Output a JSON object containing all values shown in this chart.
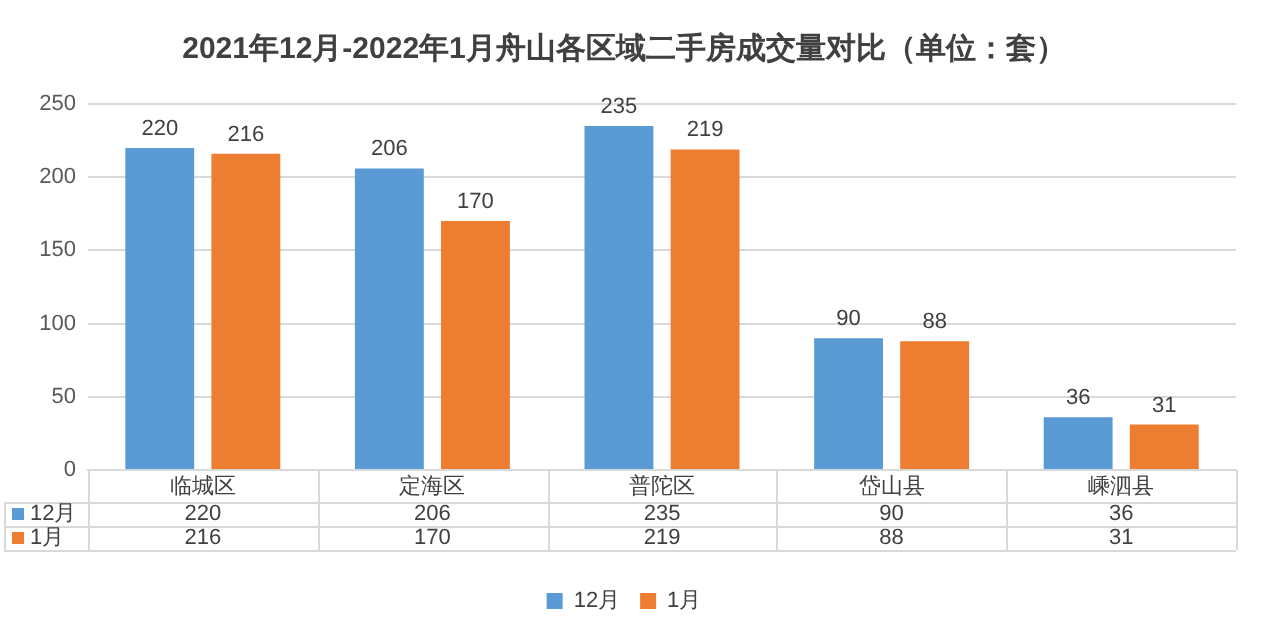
{
  "chart_data": {
    "type": "bar",
    "title": "2021年12月-2022年1月舟山各区域二手房成交量对比（单位：套）",
    "categories": [
      "临城区",
      "定海区",
      "普陀区",
      "岱山县",
      "嵊泗县"
    ],
    "series": [
      {
        "name": "12月",
        "color": "#5b9bd5",
        "values": [
          220,
          206,
          235,
          90,
          36
        ]
      },
      {
        "name": "1月",
        "color": "#ed7d31",
        "values": [
          216,
          170,
          219,
          88,
          31
        ]
      }
    ],
    "annotations": [
      "220",
      "206",
      "235",
      "90",
      "36",
      "216",
      "170",
      "219",
      "88",
      "31"
    ],
    "ylim": [
      0,
      250
    ],
    "yticks": [
      0,
      50,
      100,
      150,
      200,
      250
    ],
    "grid": "y",
    "legend": "bottom",
    "data_labels": true
  }
}
